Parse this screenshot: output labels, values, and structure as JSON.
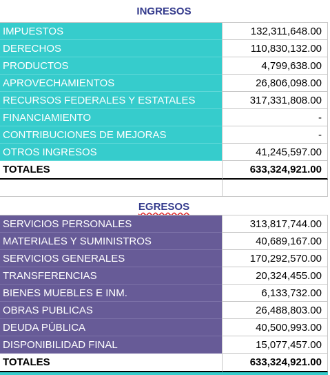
{
  "ingresos": {
    "title": "INGRESOS",
    "rows": [
      [
        "IMPUESTOS",
        "132,311,648.00"
      ],
      [
        "DERECHOS",
        "110,830,132.00"
      ],
      [
        "PRODUCTOS",
        "4,799,638.00"
      ],
      [
        "APROVECHAMIENTOS",
        "26,806,098.00"
      ],
      [
        "RECURSOS FEDERALES Y ESTATALES",
        "317,331,808.00"
      ],
      [
        "FINANCIAMIENTO",
        "-"
      ],
      [
        "CONTRIBUCIONES DE MEJORAS",
        "-"
      ],
      [
        "OTROS INGRESOS",
        "41,245,597.00"
      ]
    ],
    "total": [
      "TOTALES",
      "633,324,921.00"
    ]
  },
  "egresos": {
    "title": "EGRESOS",
    "rows": [
      [
        "SERVICIOS PERSONALES",
        "313,817,744.00"
      ],
      [
        "MATERIALES Y SUMINISTROS",
        "40,689,167.00"
      ],
      [
        "SERVICIOS GENERALES",
        "170,292,570.00"
      ],
      [
        "TRANSFERENCIAS",
        "20,324,455.00"
      ],
      [
        "BIENES MUEBLES E INM.",
        "6,133,732.00"
      ],
      [
        "OBRAS PUBLICAS",
        "26,488,803.00"
      ],
      [
        "DEUDA PÚBLICA",
        "40,500,993.00"
      ],
      [
        "DISPONIBILIDAD FINAL",
        "15,077,457.00"
      ]
    ],
    "total": [
      "TOTALES",
      "633,324,921.00"
    ]
  }
}
